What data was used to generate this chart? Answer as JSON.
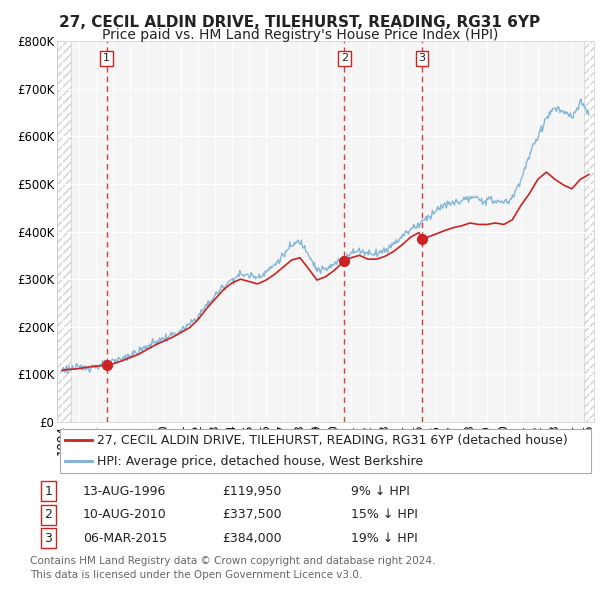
{
  "title": "27, CECIL ALDIN DRIVE, TILEHURST, READING, RG31 6YP",
  "subtitle": "Price paid vs. HM Land Registry's House Price Index (HPI)",
  "ylim": [
    0,
    800000
  ],
  "xlim_start": 1993.7,
  "xlim_end": 2025.3,
  "ytick_labels": [
    "£0",
    "£100K",
    "£200K",
    "£300K",
    "£400K",
    "£500K",
    "£600K",
    "£700K",
    "£800K"
  ],
  "ytick_values": [
    0,
    100000,
    200000,
    300000,
    400000,
    500000,
    600000,
    700000,
    800000
  ],
  "background_color": "#ffffff",
  "plot_bg_color": "#f5f5f5",
  "grid_color": "#ffffff",
  "sale_dates": [
    1996.62,
    2010.61,
    2015.17
  ],
  "sale_prices": [
    119950,
    337500,
    384000
  ],
  "sale_labels": [
    "1",
    "2",
    "3"
  ],
  "red_line_color": "#cc2222",
  "blue_line_color": "#7ab0d4",
  "dashed_vline_color": "#cc2222",
  "sale_marker_color": "#cc2222",
  "legend_entries": [
    "27, CECIL ALDIN DRIVE, TILEHURST, READING, RG31 6YP (detached house)",
    "HPI: Average price, detached house, West Berkshire"
  ],
  "table_entries": [
    {
      "num": "1",
      "date": "13-AUG-1996",
      "price": "£119,950",
      "pct": "9% ↓ HPI"
    },
    {
      "num": "2",
      "date": "10-AUG-2010",
      "price": "£337,500",
      "pct": "15% ↓ HPI"
    },
    {
      "num": "3",
      "date": "06-MAR-2015",
      "price": "£384,000",
      "pct": "19% ↓ HPI"
    }
  ],
  "footer_text": "Contains HM Land Registry data © Crown copyright and database right 2024.\nThis data is licensed under the Open Government Licence v3.0.",
  "title_fontsize": 11,
  "subtitle_fontsize": 10,
  "tick_fontsize": 8.5,
  "legend_fontsize": 9,
  "table_fontsize": 9,
  "footer_fontsize": 7.5
}
